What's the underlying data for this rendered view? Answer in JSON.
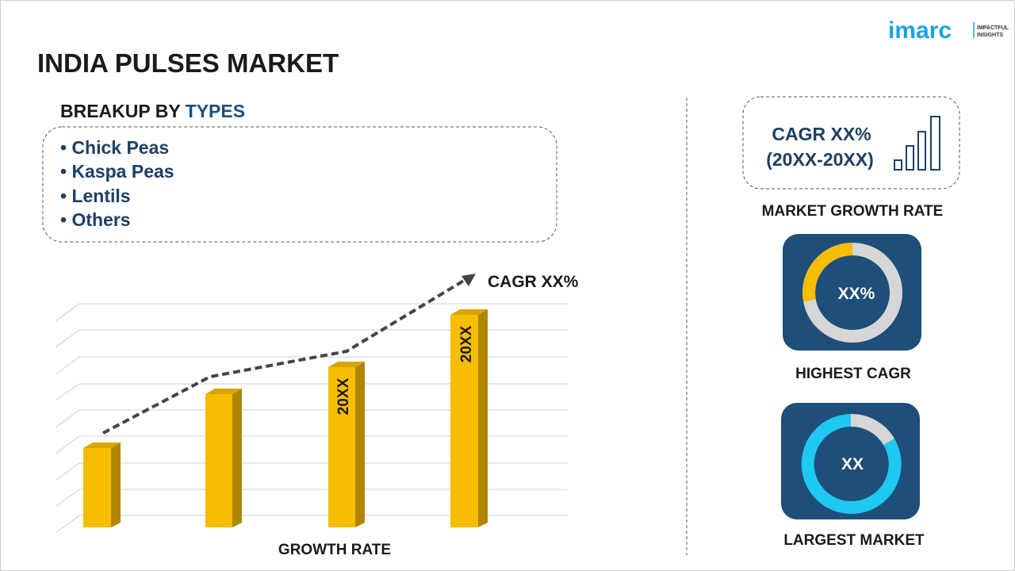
{
  "logo": {
    "name": "imarc",
    "tagline": [
      "IMPACTFUL",
      "INSIGHTS"
    ]
  },
  "header": {
    "title": "INDIA PULSES MARKET"
  },
  "breakup": {
    "heading": "BREAKUP BY",
    "highlight": "TYPES",
    "items": [
      "• Chick Peas",
      "• Kaspa Peas",
      "• Lentils",
      "• Others"
    ]
  },
  "growth_chart": {
    "trend_label": "CAGR XX%",
    "bar_labels": [
      "20XX",
      "20XX"
    ],
    "axis_label": "GROWTH RATE"
  },
  "cards": [
    {
      "line1": "CAGR XX%",
      "line2": "(20XX-20XX)",
      "caption": "MARKET GROWTH RATE"
    },
    {
      "value": "XX%",
      "caption": "HIGHEST CAGR"
    },
    {
      "value": "XX",
      "caption": "LARGEST MARKET"
    }
  ]
}
